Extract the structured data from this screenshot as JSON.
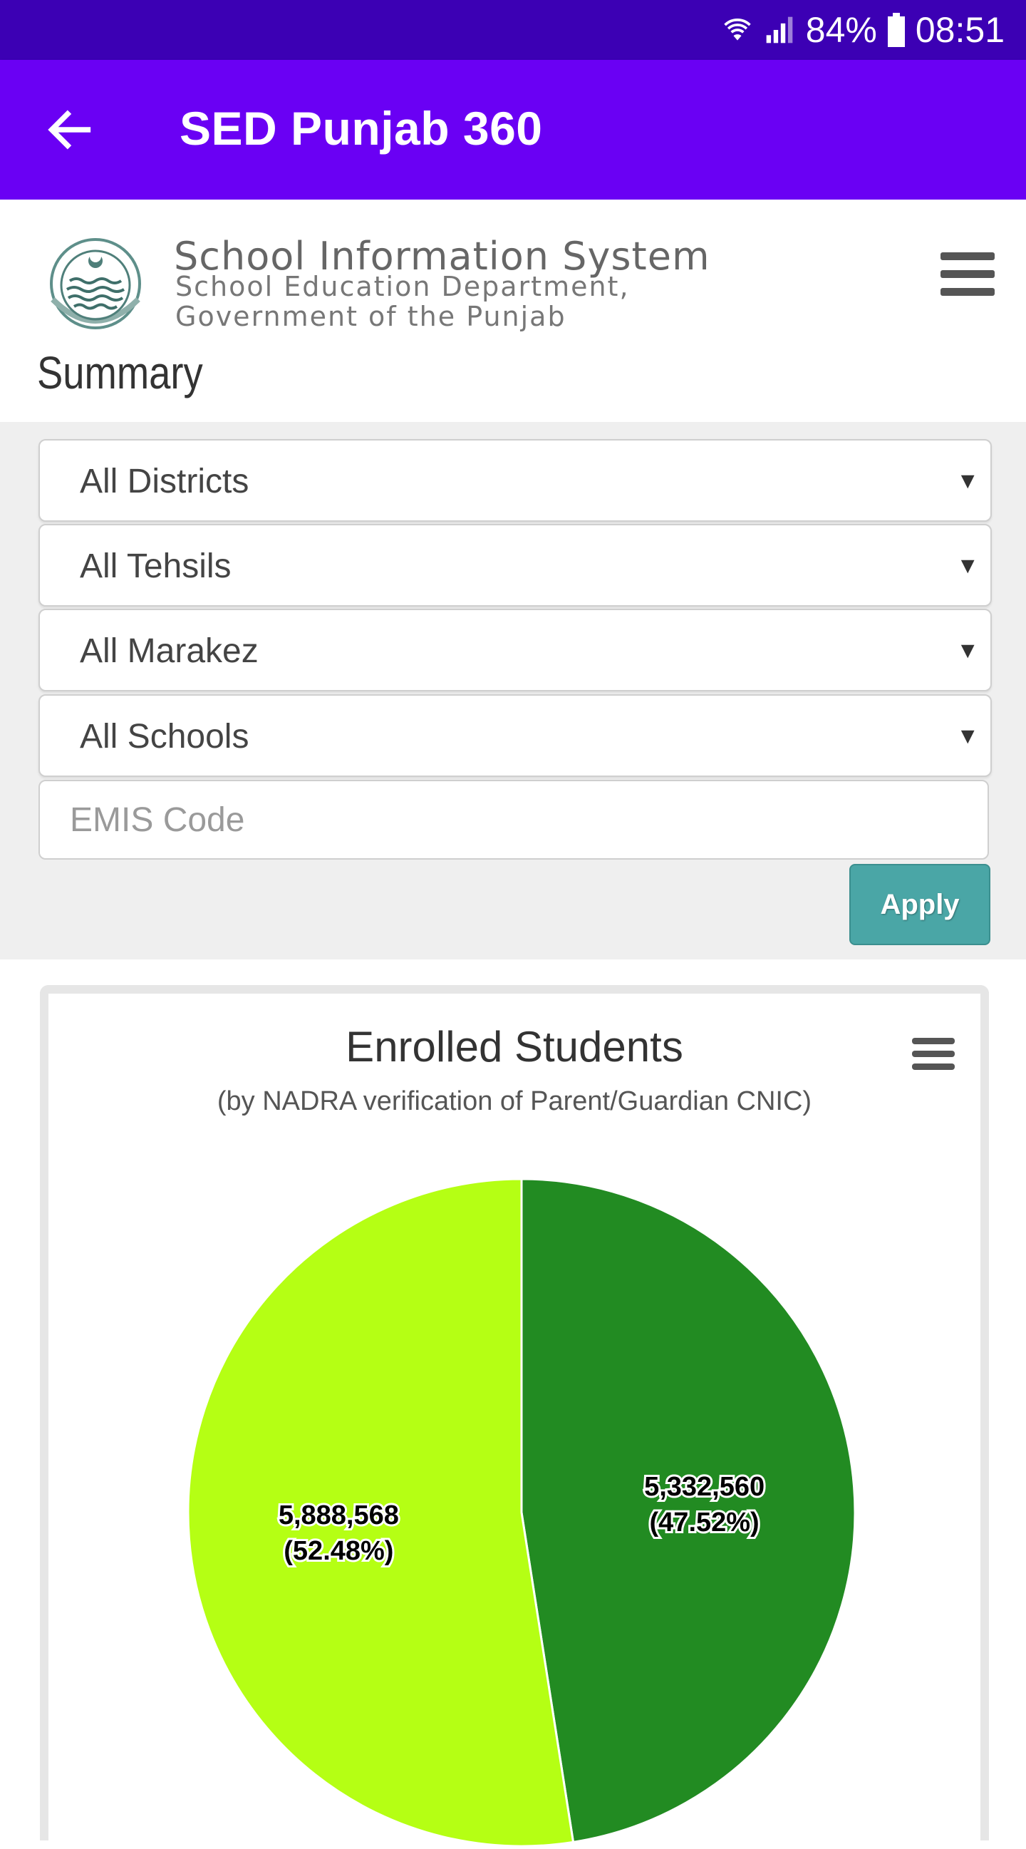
{
  "status_bar": {
    "battery": "84%",
    "time": "08:51",
    "icons": [
      "wifi-icon",
      "signal-icon",
      "battery-icon"
    ]
  },
  "app_bar": {
    "title": "SED Punjab 360",
    "icon": "back-arrow-icon",
    "background": "#6a00f4"
  },
  "header": {
    "logo_title": "School Information System",
    "logo_subtitle_1": "School Education Department,",
    "logo_subtitle_2": "Government of the Punjab",
    "page_heading": "Summary",
    "menu_icon": "hamburger-menu-icon"
  },
  "filters": {
    "district": "All Districts",
    "tehsil": "All Tehsils",
    "markaz": "All Marakez",
    "school": "All Schools",
    "emis_placeholder": "EMIS Code",
    "apply_label": "Apply",
    "apply_color": "#4aa6a6"
  },
  "chart_data": {
    "type": "pie",
    "title": "Enrolled Students",
    "subtitle": "(by NADRA verification of Parent/Guardian CNIC)",
    "slices": [
      {
        "value": 5332560,
        "percent": 47.52,
        "label": "5,332,560",
        "pct_label": "(47.52%)",
        "color": "#228b22"
      },
      {
        "value": 5888568,
        "percent": 52.48,
        "label": "5,888,568",
        "pct_label": "(52.48%)",
        "color": "#b5ff14"
      }
    ],
    "legend": "none"
  }
}
